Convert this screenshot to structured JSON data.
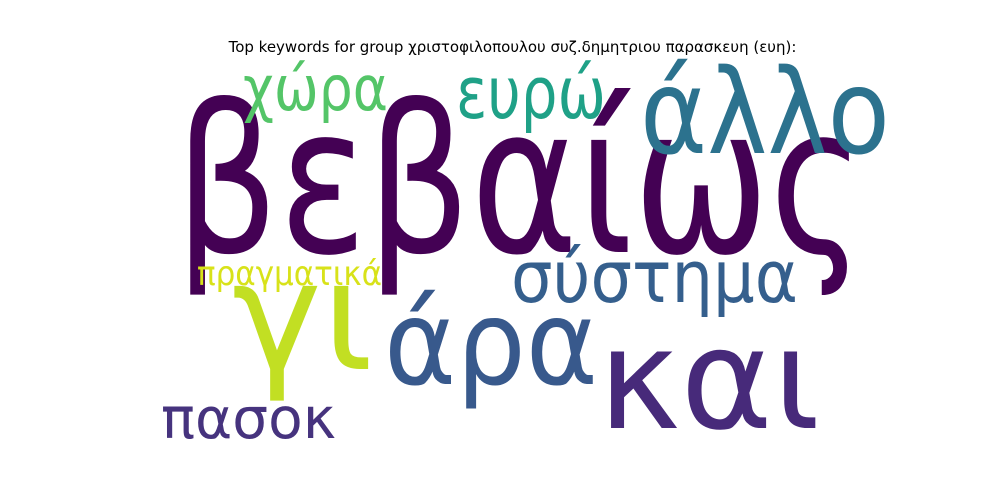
{
  "chart_data": {
    "type": "wordcloud",
    "title": "Top keywords for group χριστοφιλοπουλου συζ.δημητριου παρασκευη (ευη):",
    "words": [
      {
        "text": "βεβαίως",
        "weight": 1.0,
        "color": "#440154"
      },
      {
        "text": "γι",
        "weight": 0.78,
        "color": "#c2df23"
      },
      {
        "text": "και",
        "weight": 0.72,
        "color": "#472a7a"
      },
      {
        "text": "άλλο",
        "weight": 0.62,
        "color": "#2c728e"
      },
      {
        "text": "άρα",
        "weight": 0.62,
        "color": "#38598c"
      },
      {
        "text": "σύστημα",
        "weight": 0.4,
        "color": "#355f8d"
      },
      {
        "text": "ευρώ",
        "weight": 0.38,
        "color": "#1fa187"
      },
      {
        "text": "χώρα",
        "weight": 0.37,
        "color": "#54c568"
      },
      {
        "text": "πασοκ",
        "weight": 0.34,
        "color": "#46337e"
      },
      {
        "text": "πραγματικά",
        "weight": 0.23,
        "color": "#d8e219"
      }
    ]
  }
}
